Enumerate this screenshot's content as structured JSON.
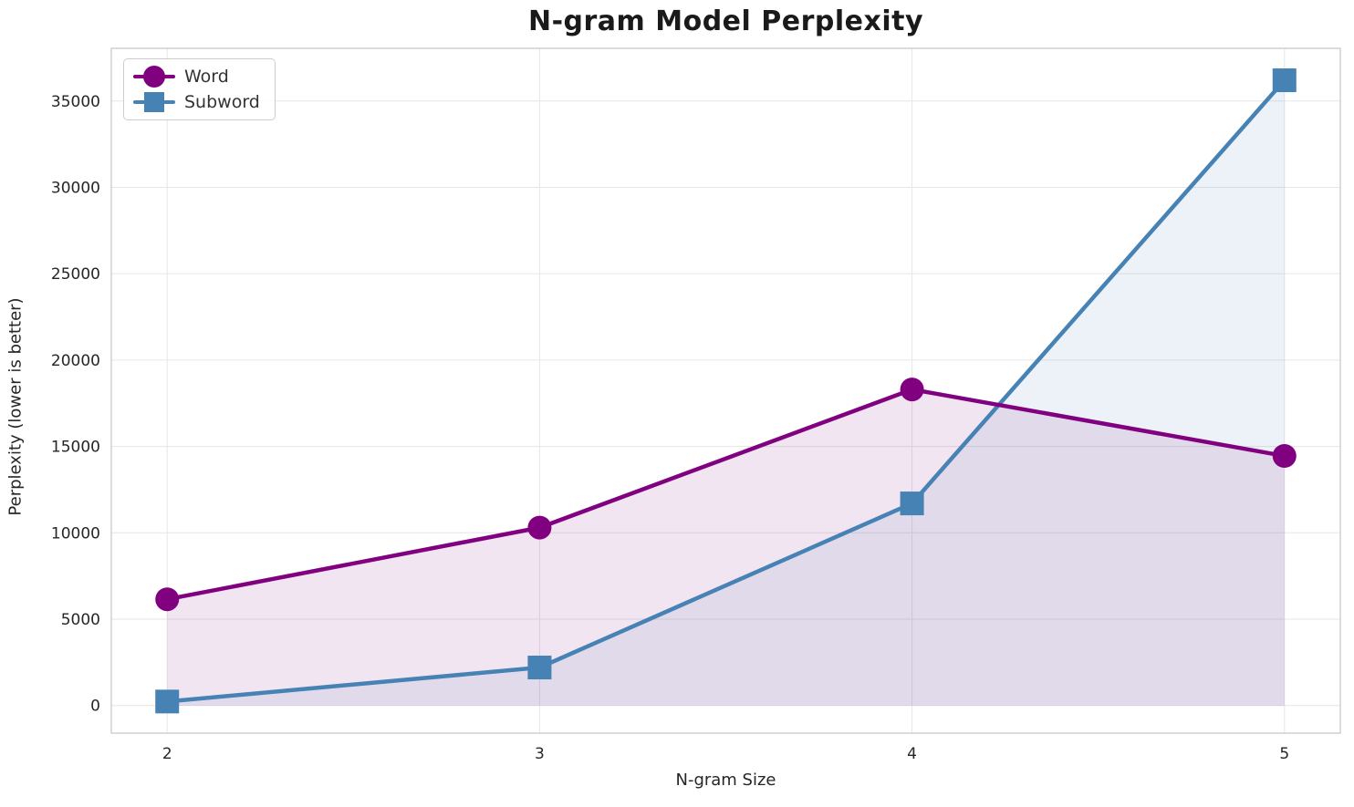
{
  "chart_data": {
    "type": "line",
    "title": "N-gram Model Perplexity",
    "xlabel": "N-gram Size",
    "ylabel": "Perplexity (lower is better)",
    "x": [
      2,
      3,
      4,
      5
    ],
    "xticks": [
      2,
      3,
      4,
      5
    ],
    "yticks": [
      0,
      5000,
      10000,
      15000,
      20000,
      25000,
      30000,
      35000
    ],
    "xlim": [
      1.85,
      5.15
    ],
    "ylim": [
      -1600,
      38050
    ],
    "grid": true,
    "legend_position": "upper left",
    "fill_alpha": 0.1,
    "fill_baseline": 0,
    "series": [
      {
        "name": "Word",
        "color": "#800080",
        "marker": "circle",
        "values": [
          6150,
          10300,
          18300,
          14450
        ]
      },
      {
        "name": "Subword",
        "color": "#4682B4",
        "marker": "square",
        "values": [
          230,
          2200,
          11700,
          36200
        ]
      }
    ],
    "style": {
      "grid_color": "#e6e6e6",
      "spine_color": "#cccccc",
      "text_color": "#262626",
      "background": "#ffffff",
      "line_width": 4.5,
      "marker_size": 26
    }
  }
}
